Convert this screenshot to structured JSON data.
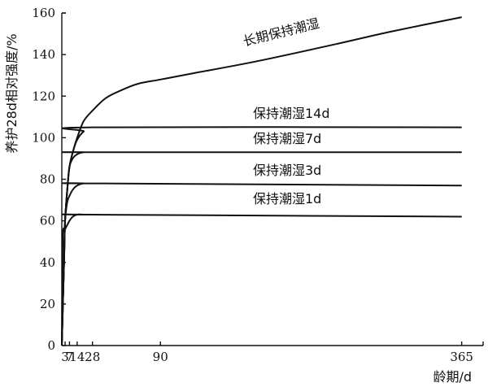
{
  "chart_data": {
    "type": "line",
    "xlabel": "龄期/d",
    "ylabel": "养护28d相对强度/%",
    "xlim": [
      0,
      380
    ],
    "ylim": [
      0,
      160
    ],
    "x_ticks": [
      3,
      7,
      14,
      28,
      90,
      365
    ],
    "x_tick_labels": [
      "3",
      "7",
      "14",
      "28",
      "90",
      "365"
    ],
    "y_ticks": [
      0,
      20,
      40,
      60,
      80,
      100,
      120,
      140,
      160
    ],
    "y_tick_labels": [
      "0",
      "20",
      "40",
      "60",
      "80",
      "100",
      "120",
      "140",
      "160"
    ],
    "grid": false,
    "series": [
      {
        "name": "长期保持潮湿",
        "x": [
          0,
          2,
          3,
          5,
          7,
          10,
          14,
          20,
          28,
          40,
          55,
          70,
          90,
          120,
          180,
          250,
          300,
          365
        ],
        "y": [
          0,
          40,
          60,
          75,
          86,
          93,
          100,
          108,
          113,
          119,
          123,
          126,
          128,
          131,
          137,
          145,
          151,
          158
        ]
      },
      {
        "name": "保持潮湿14d",
        "x": [
          0,
          2,
          3,
          5,
          7,
          10,
          14,
          20,
          28,
          365
        ],
        "y": [
          0,
          40,
          60,
          75,
          86,
          93,
          99,
          103,
          105,
          105
        ]
      },
      {
        "name": "保持潮湿7d",
        "x": [
          0,
          2,
          3,
          5,
          7,
          10,
          14,
          20,
          28,
          365
        ],
        "y": [
          0,
          40,
          60,
          75,
          86,
          90,
          92,
          93,
          93,
          93
        ]
      },
      {
        "name": "保持潮湿3d",
        "x": [
          0,
          2,
          3,
          5,
          7,
          10,
          14,
          20,
          28,
          365
        ],
        "y": [
          0,
          40,
          60,
          69,
          72,
          75,
          77,
          78,
          78,
          77
        ]
      },
      {
        "name": "保持潮湿1d",
        "x": [
          0,
          0.5,
          1,
          3,
          5,
          7,
          10,
          14,
          20,
          28,
          365
        ],
        "y": [
          0,
          30,
          54,
          56,
          58,
          60,
          62,
          63,
          63,
          63,
          62
        ]
      }
    ]
  }
}
